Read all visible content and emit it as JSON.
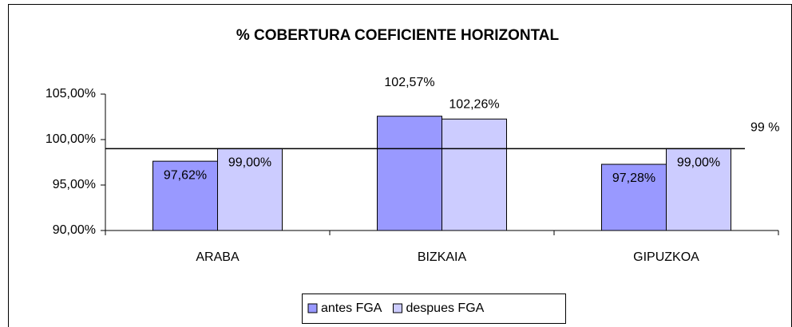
{
  "chart_data": {
    "type": "bar",
    "title": "% COBERTURA COEFICIENTE HORIZONTAL",
    "categories": [
      "ARABA",
      "BIZKAIA",
      "GIPUZKOA"
    ],
    "series": [
      {
        "name": "antes FGA",
        "color": "#9999ff",
        "values": [
          97.62,
          102.57,
          97.28
        ],
        "value_labels": [
          "97,62%",
          "102,57%",
          "97,28%"
        ]
      },
      {
        "name": "despues FGA",
        "color": "#ccccff",
        "values": [
          99,
          102.26,
          99
        ],
        "value_labels": [
          "99,00%",
          "102,26%",
          "99,00%"
        ]
      }
    ],
    "ylim": [
      90,
      105
    ],
    "yticks": [
      {
        "value": 90,
        "label": "90,00%"
      },
      {
        "value": 95,
        "label": "95,00%"
      },
      {
        "value": 100,
        "label": "100,00%"
      },
      {
        "value": 105,
        "label": "105,00%"
      }
    ],
    "reference_line": {
      "value": 99,
      "label": "99 %"
    },
    "legend": "bottom"
  }
}
